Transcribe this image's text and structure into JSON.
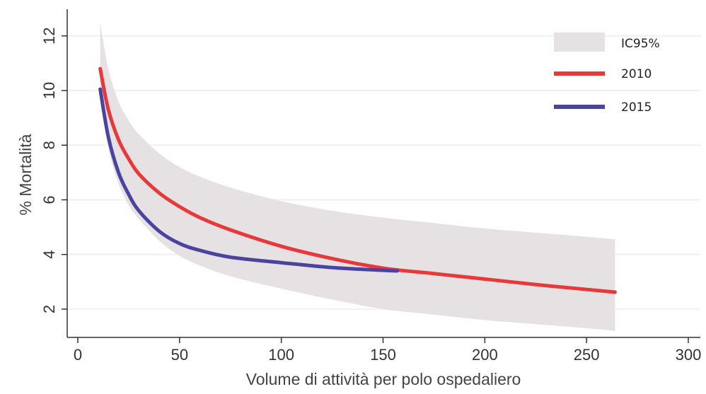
{
  "chart_data": {
    "type": "line",
    "title": "",
    "xlabel": "Volume di attività per polo ospedaliero",
    "ylabel": "% Mortalità",
    "xlim": [
      0,
      300
    ],
    "ylim": [
      1,
      13
    ],
    "xticks": [
      0,
      50,
      100,
      150,
      200,
      250,
      300
    ],
    "yticks": [
      2,
      4,
      6,
      8,
      10,
      12
    ],
    "grid": "horizontal",
    "legend_position": "top-right",
    "legend": [
      "IC95%",
      "2010",
      "2015"
    ],
    "colors": {
      "ci_band": "#e6e1e3",
      "series_2010": "#e8383a",
      "series_2015": "#4a44a0",
      "grid": "#eeeeee",
      "axis": "#333333"
    },
    "confidence_band": {
      "name": "IC95%",
      "x": [
        11,
        15,
        20,
        25,
        30,
        40,
        50,
        60,
        75,
        100,
        125,
        150,
        175,
        200,
        225,
        250,
        264
      ],
      "upper": [
        12.5,
        10.8,
        9.6,
        8.9,
        8.4,
        7.7,
        7.2,
        6.85,
        6.45,
        5.95,
        5.6,
        5.35,
        5.15,
        4.95,
        4.8,
        4.65,
        4.55
      ],
      "lower": [
        10.0,
        7.9,
        6.6,
        5.8,
        5.3,
        4.5,
        3.95,
        3.6,
        3.2,
        2.75,
        2.35,
        2.0,
        1.8,
        1.6,
        1.45,
        1.3,
        1.2
      ]
    },
    "series": [
      {
        "name": "2010",
        "x": [
          11,
          15,
          20,
          25,
          30,
          40,
          50,
          60,
          75,
          100,
          125,
          150,
          175,
          200,
          225,
          250,
          264
        ],
        "values": [
          10.8,
          9.3,
          8.2,
          7.5,
          6.95,
          6.25,
          5.75,
          5.35,
          4.9,
          4.3,
          3.85,
          3.5,
          3.3,
          3.1,
          2.9,
          2.72,
          2.62
        ]
      },
      {
        "name": "2015",
        "x": [
          11,
          15,
          20,
          25,
          30,
          40,
          50,
          60,
          75,
          100,
          125,
          150,
          157
        ],
        "values": [
          10.05,
          8.3,
          7.0,
          6.2,
          5.6,
          4.85,
          4.4,
          4.15,
          3.9,
          3.7,
          3.52,
          3.42,
          3.4
        ]
      }
    ]
  }
}
